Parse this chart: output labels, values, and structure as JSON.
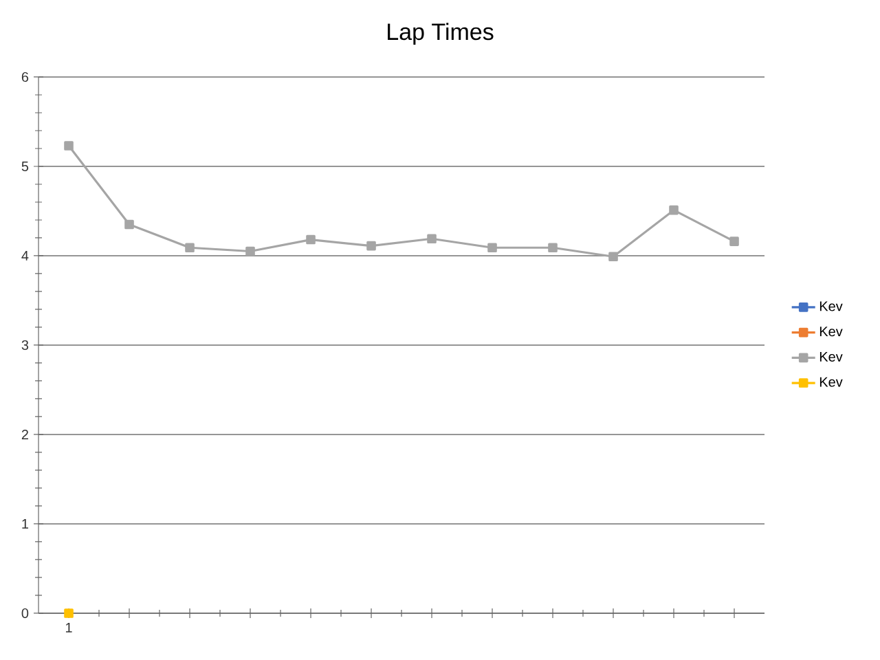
{
  "chart_data": {
    "type": "line",
    "title": "Lap Times",
    "categories": [
      "1",
      null,
      null,
      null,
      null,
      null,
      null,
      null,
      null,
      null,
      null,
      null
    ],
    "series": [
      {
        "name": "Kev",
        "color": "#4472c4",
        "values": [
          null,
          null,
          null,
          null,
          null,
          null,
          null,
          null,
          null,
          null,
          null,
          null
        ]
      },
      {
        "name": "Kev",
        "color": "#ed7d31",
        "values": [
          null,
          null,
          null,
          null,
          null,
          null,
          null,
          null,
          null,
          null,
          null,
          null
        ]
      },
      {
        "name": "Kev",
        "color": "#a5a5a5",
        "values": [
          5.23,
          4.35,
          4.09,
          4.05,
          4.18,
          4.11,
          4.19,
          4.09,
          4.09,
          3.99,
          4.51,
          4.16
        ]
      },
      {
        "name": "Kev",
        "color": "#ffc000",
        "values": [
          0,
          null,
          null,
          null,
          null,
          null,
          null,
          null,
          null,
          null,
          null,
          null
        ]
      }
    ],
    "ylim": [
      0,
      6
    ],
    "yticks": [
      0,
      1,
      2,
      3,
      4,
      5,
      6
    ],
    "grid": "y",
    "legend": "right",
    "marker": "square",
    "line_style": "solid"
  }
}
